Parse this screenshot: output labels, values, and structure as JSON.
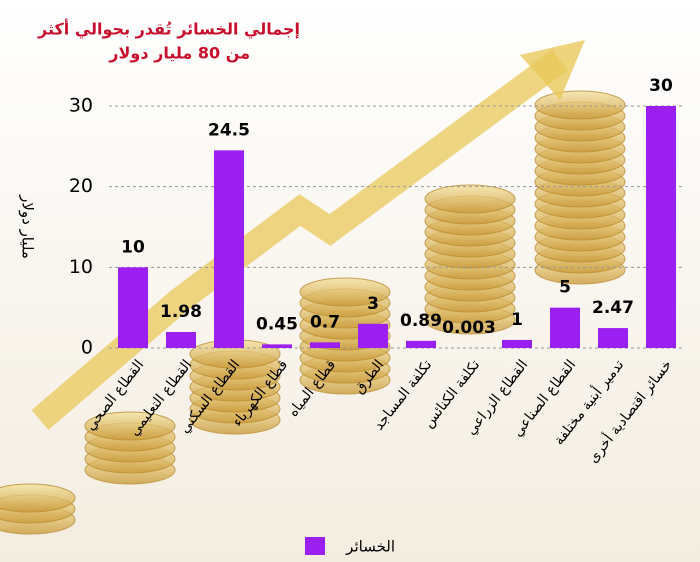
{
  "chart_data": {
    "type": "bar",
    "title": [
      "إجمالي الخسائر تُقدر بحوالي أكثر",
      "من 80 مليار دولار"
    ],
    "y_label": "مليار دولار",
    "categories": [
      "القطاع الصحي",
      "القطاع التعليمي",
      "القطاع السكني",
      "قطاع الكهرباء",
      "قطاع المياه",
      "الطرق",
      "تكلفة المساجد",
      "تكلفة الكنائس",
      "القطاع الزراعي",
      "القطاع الصناعي",
      "تدمير أبنية مختلفة",
      "خسائر اقتصادية أخرى"
    ],
    "series": [
      {
        "name": "الخسائر",
        "color": "#9b1ff0",
        "values": [
          10,
          1.98,
          24.5,
          0.45,
          0.7,
          3,
          0.89,
          0.003,
          1,
          5,
          2.47,
          30
        ]
      }
    ],
    "ylim": [
      0,
      30
    ],
    "yticks": [
      0,
      10,
      20,
      30
    ],
    "grid": true,
    "legend": "bottom"
  }
}
